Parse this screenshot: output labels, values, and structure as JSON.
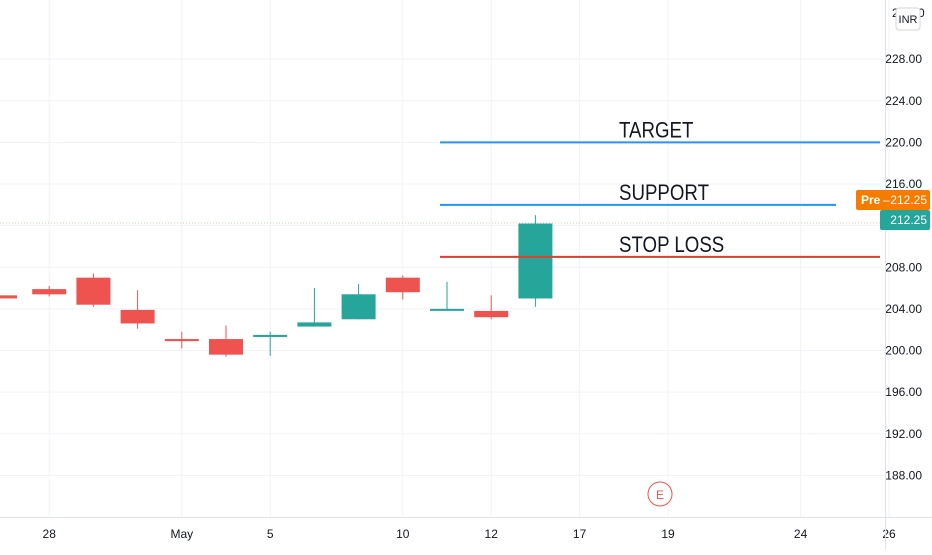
{
  "currency_label": "INR",
  "partial_top_tick": "2",
  "partial_top_tick_end": "0",
  "pre_badge": {
    "prefix": "Pre",
    "value": "212.25",
    "color": "#f57c00"
  },
  "last_badge": {
    "value": "212.25",
    "color": "#26a69a"
  },
  "earnings_marker": "E",
  "colors": {
    "up": "#26a69a",
    "down": "#ef5350",
    "target": "#2196f3",
    "support": "#2196f3",
    "stop_loss": "#e53935",
    "grid": "#f0f3fa",
    "price_line": "#f5c795"
  },
  "chart_data": {
    "type": "candlestick",
    "ylim": [
      184.0,
      232.0
    ],
    "y_ticks": [
      "228.00",
      "224.00",
      "220.00",
      "216.00",
      "212.00",
      "208.00",
      "204.00",
      "200.00",
      "196.00",
      "192.00",
      "188.00"
    ],
    "y_tick_values": [
      228,
      224,
      220,
      216,
      212,
      208,
      204,
      200,
      196,
      192,
      188
    ],
    "x_ticks": [
      "28",
      "May",
      "5",
      "10",
      "12",
      "17",
      "19",
      "24",
      "26"
    ],
    "x_tick_slots": [
      1,
      4,
      6,
      9,
      11,
      13,
      15,
      18,
      20
    ],
    "candles": [
      {
        "slot": 0,
        "open": 205.3,
        "high": 205.3,
        "low": 205.0,
        "close": 205.0
      },
      {
        "slot": 1,
        "open": 205.9,
        "high": 206.2,
        "low": 205.2,
        "close": 205.4
      },
      {
        "slot": 2,
        "open": 207.0,
        "high": 207.4,
        "low": 204.2,
        "close": 204.4
      },
      {
        "slot": 3,
        "open": 203.9,
        "high": 205.8,
        "low": 202.1,
        "close": 202.6
      },
      {
        "slot": 4,
        "open": 201.1,
        "high": 201.8,
        "low": 200.2,
        "close": 200.9
      },
      {
        "slot": 5,
        "open": 201.1,
        "high": 202.4,
        "low": 199.4,
        "close": 199.6
      },
      {
        "slot": 6,
        "open": 201.3,
        "high": 201.8,
        "low": 199.5,
        "close": 201.5
      },
      {
        "slot": 7,
        "open": 202.3,
        "high": 206.0,
        "low": 202.3,
        "close": 202.7
      },
      {
        "slot": 8,
        "open": 203.0,
        "high": 206.4,
        "low": 203.0,
        "close": 205.4
      },
      {
        "slot": 9,
        "open": 207.0,
        "high": 207.2,
        "low": 204.9,
        "close": 205.6
      },
      {
        "slot": 10,
        "open": 203.9,
        "high": 206.6,
        "low": 203.9,
        "close": 204.0
      },
      {
        "slot": 11,
        "open": 203.8,
        "high": 205.3,
        "low": 203.0,
        "close": 203.2
      },
      {
        "slot": 12,
        "open": 205.0,
        "high": 213.0,
        "low": 204.2,
        "close": 212.2
      }
    ],
    "current_price": 212.25,
    "levels": [
      {
        "key": "target",
        "label": "TARGET",
        "value": 220.0
      },
      {
        "key": "support",
        "label": "SUPPORT",
        "value": 214.0
      },
      {
        "key": "stop_loss",
        "label": "STOP LOSS",
        "value": 209.0
      }
    ],
    "grid": true
  }
}
